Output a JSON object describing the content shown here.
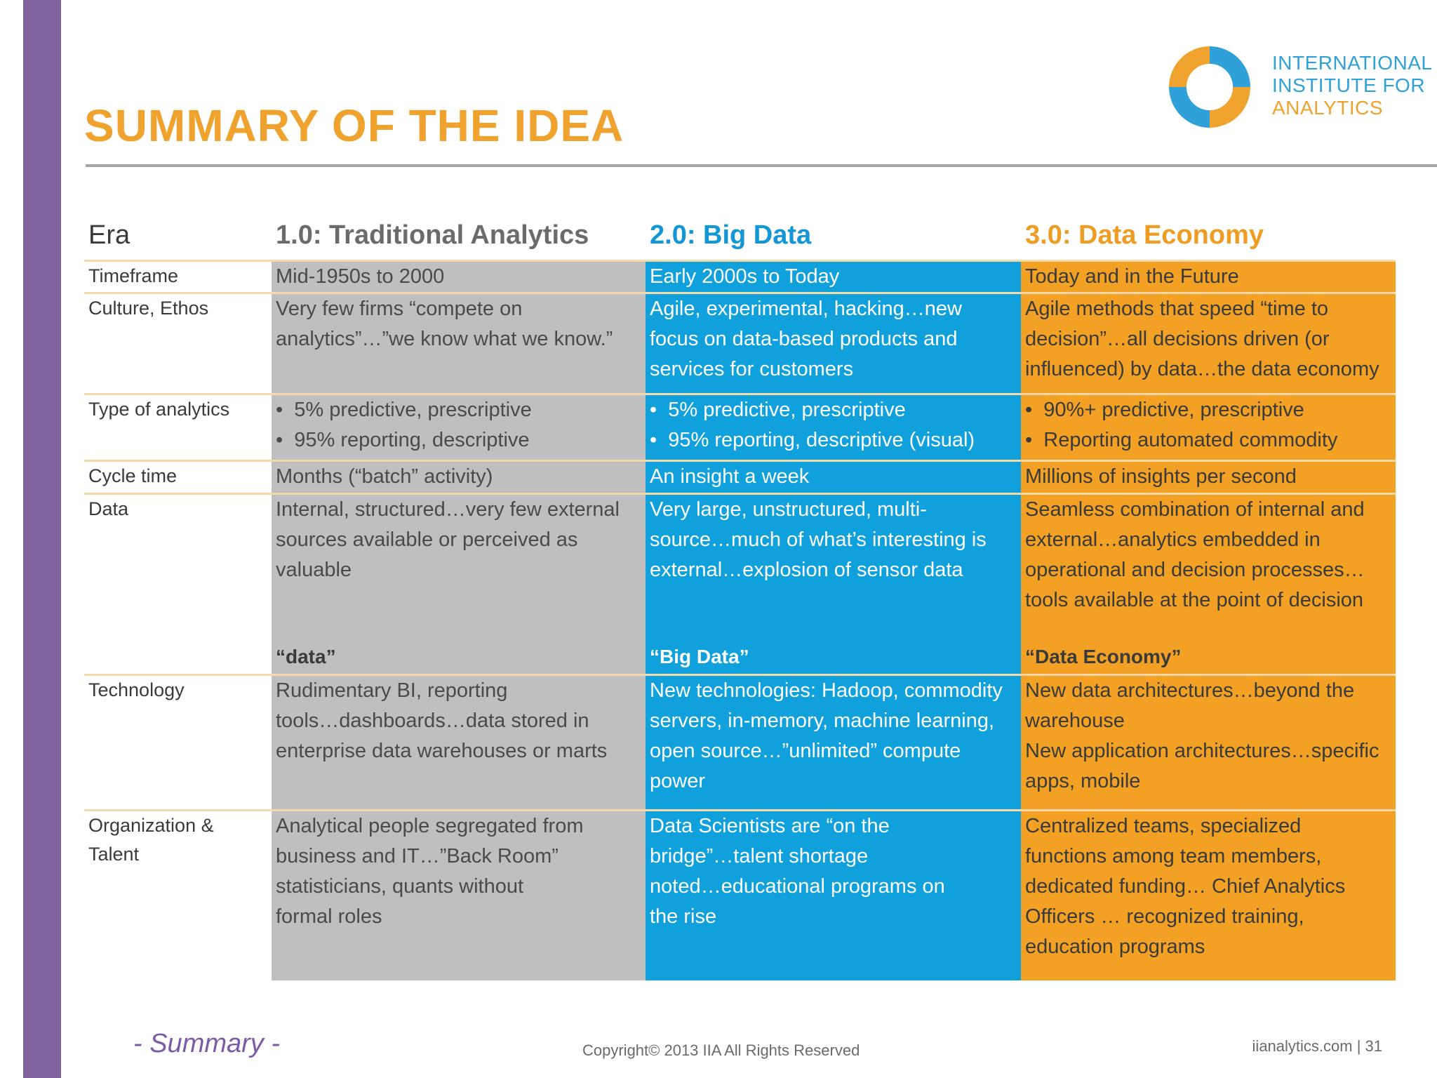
{
  "title": "SUMMARY OF THE IDEA",
  "logo": {
    "line1": "INTERNATIONAL",
    "line2": "INSTITUTE FOR",
    "line3": "ANALYTICS"
  },
  "table": {
    "header": {
      "label": "Era",
      "gray": "1.0:  Traditional Analytics",
      "blue": "2.0:  Big Data",
      "orange": "3.0:  Data Economy"
    },
    "timeframe": {
      "label": "Timeframe",
      "gray": "Mid-1950s to 2000",
      "blue": "Early 2000s to Today",
      "orange": "Today and in the Future"
    },
    "culture": {
      "label": "Culture, Ethos",
      "gray": [
        "Very few firms “compete on",
        "analytics”…”we know what we know.”"
      ],
      "blue": [
        "Agile, experimental, hacking…new",
        "focus on data-based products and",
        "services for customers"
      ],
      "orange": [
        "Agile methods that speed “time to",
        "decision”…all decisions driven (or",
        "influenced) by data…the data economy"
      ]
    },
    "type": {
      "label": "Type of analytics",
      "gray": [
        "5% predictive, prescriptive",
        "95% reporting, descriptive"
      ],
      "blue": [
        "5% predictive, prescriptive",
        "95% reporting, descriptive (visual)"
      ],
      "orange": [
        "90%+ predictive, prescriptive",
        "Reporting automated commodity"
      ]
    },
    "cycle": {
      "label": "Cycle time",
      "gray": "Months (“batch” activity)",
      "blue": "An insight a week",
      "orange": "Millions of insights per second"
    },
    "data": {
      "label": "Data",
      "gray": [
        "Internal, structured…very few external",
        "sources available or perceived as",
        "valuable"
      ],
      "blue": [
        "Very large, unstructured, multi-",
        "source…much of what’s interesting is",
        "external…explosion of sensor data"
      ],
      "orange": [
        "Seamless combination of internal and",
        "external…analytics embedded in",
        "operational and decision processes…",
        "tools available at the point of decision"
      ],
      "tag_gray": "“data”",
      "tag_blue": "“Big Data”",
      "tag_orange": "“Data Economy”"
    },
    "technology": {
      "label": "Technology",
      "gray": [
        "Rudimentary BI, reporting",
        "tools…dashboards…data stored in",
        "enterprise data warehouses or marts"
      ],
      "blue": [
        "New technologies: Hadoop, commodity",
        "servers, in-memory, machine learning,",
        "open source…”unlimited” compute",
        "power"
      ],
      "orange": [
        "New data architectures…beyond the",
        "warehouse",
        "New application architectures…specific",
        "apps, mobile"
      ]
    },
    "organization": {
      "label_line1": "Organization &",
      "label_line2": "Talent",
      "gray": [
        "Analytical people segregated from",
        "business and IT…”Back Room”",
        "statisticians, quants without",
        "formal roles"
      ],
      "blue": [
        "Data Scientists are “on the",
        "bridge”…talent shortage",
        "noted…educational programs on",
        "the rise"
      ],
      "orange": [
        "Centralized teams, specialized",
        "functions among team members,",
        "dedicated funding… Chief Analytics",
        "Officers … recognized training,",
        "education programs"
      ]
    }
  },
  "footer": {
    "section": "- Summary -",
    "copyright": "Copyright© 2013 IIA All Rights Reserved",
    "site": "iianalytics.com  |  31"
  },
  "colors": {
    "purple": "#8063a0",
    "orange": "#f3a125",
    "blue": "#10a0dc",
    "gray": "#bfbfbf"
  }
}
